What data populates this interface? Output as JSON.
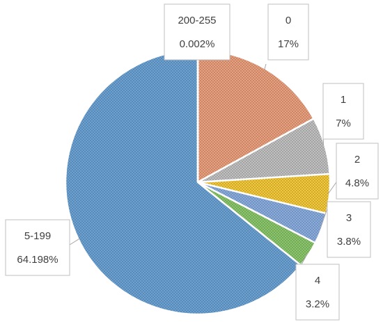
{
  "chart_data": {
    "type": "pie",
    "title": "",
    "legend": "none",
    "slices": [
      {
        "category": "0",
        "label": "17%",
        "value": 17,
        "color": "#f4a582"
      },
      {
        "category": "1",
        "label": "7%",
        "value": 7,
        "color": "#c8c8c8"
      },
      {
        "category": "2",
        "label": "4.8%",
        "value": 4.8,
        "color": "#fdd13c"
      },
      {
        "category": "3",
        "label": "3.8%",
        "value": 3.8,
        "color": "#8fb4e8"
      },
      {
        "category": "4",
        "label": "3.2%",
        "value": 3.2,
        "color": "#8fcf6e"
      },
      {
        "category": "5-199",
        "label": "64.198%",
        "value": 64.198,
        "color": "#6fa8dc"
      },
      {
        "category": "200-255",
        "label": "0.002%",
        "value": 0.002,
        "color": "#d9d9d9"
      }
    ]
  }
}
